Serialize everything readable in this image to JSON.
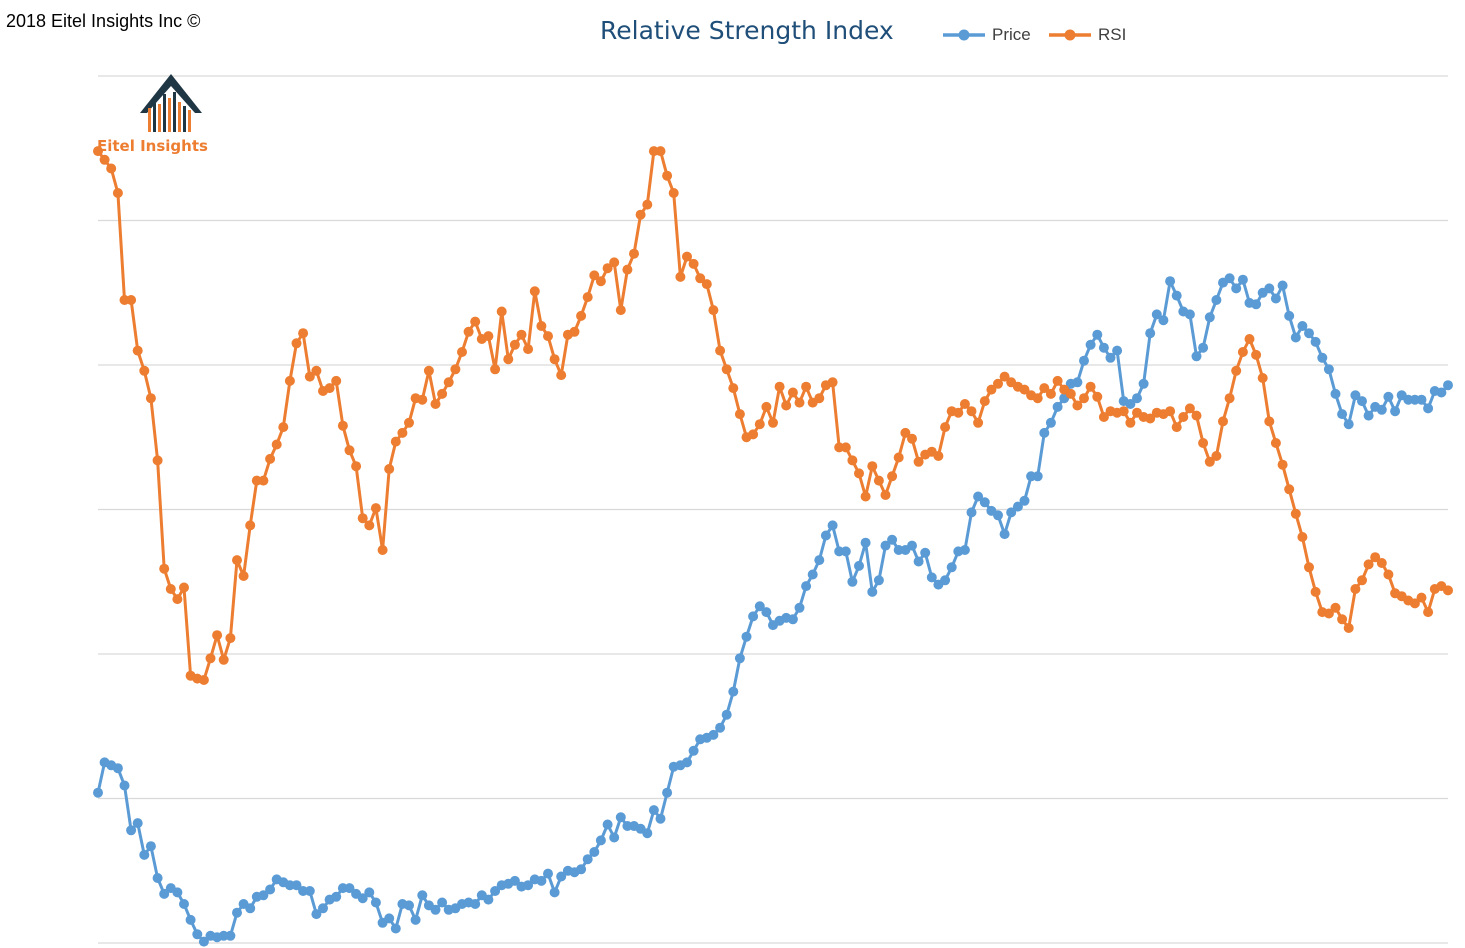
{
  "header": {
    "copyright": "2018 Eitel Insights Inc ©"
  },
  "logo": {
    "text": "Eitel Insights",
    "icon": "house-bar-chart-icon"
  },
  "colors": {
    "price": "#5b9bd5",
    "rsi": "#ed7d31",
    "grid": "#d9d9d9",
    "title": "#1f4e79",
    "logo_dark": "#1f3644"
  },
  "chart_data": {
    "type": "line",
    "title": "Relative Strength Index",
    "xlabel": "",
    "ylabel": "",
    "legend": "top",
    "grid": true,
    "ylim": [
      0,
      6
    ],
    "series": [
      {
        "name": "Price",
        "values": [
          1.04,
          1.25,
          1.23,
          1.21,
          1.09,
          0.78,
          0.83,
          0.61,
          0.67,
          0.45,
          0.34,
          0.38,
          0.35,
          0.27,
          0.16,
          0.06,
          0.01,
          0.05,
          0.04,
          0.05,
          0.05,
          0.21,
          0.27,
          0.24,
          0.32,
          0.33,
          0.37,
          0.44,
          0.42,
          0.4,
          0.4,
          0.36,
          0.36,
          0.2,
          0.24,
          0.3,
          0.32,
          0.38,
          0.38,
          0.34,
          0.31,
          0.35,
          0.28,
          0.14,
          0.17,
          0.1,
          0.27,
          0.26,
          0.16,
          0.33,
          0.26,
          0.23,
          0.28,
          0.23,
          0.24,
          0.27,
          0.28,
          0.27,
          0.33,
          0.3,
          0.36,
          0.4,
          0.41,
          0.43,
          0.39,
          0.4,
          0.44,
          0.43,
          0.48,
          0.35,
          0.46,
          0.5,
          0.49,
          0.51,
          0.58,
          0.63,
          0.71,
          0.82,
          0.73,
          0.87,
          0.81,
          0.81,
          0.79,
          0.76,
          0.92,
          0.86,
          1.04,
          1.22,
          1.23,
          1.25,
          1.33,
          1.41,
          1.42,
          1.44,
          1.49,
          1.58,
          1.74,
          1.97,
          2.12,
          2.26,
          2.33,
          2.29,
          2.2,
          2.23,
          2.25,
          2.24,
          2.32,
          2.47,
          2.55,
          2.65,
          2.82,
          2.89,
          2.71,
          2.71,
          2.5,
          2.61,
          2.77,
          2.43,
          2.51,
          2.75,
          2.79,
          2.72,
          2.72,
          2.75,
          2.64,
          2.7,
          2.53,
          2.48,
          2.51,
          2.6,
          2.71,
          2.72,
          2.98,
          3.09,
          3.05,
          2.99,
          2.96,
          2.83,
          2.98,
          3.02,
          3.06,
          3.23,
          3.23,
          3.53,
          3.6,
          3.71,
          3.77,
          3.87,
          3.88,
          4.03,
          4.14,
          4.21,
          4.12,
          4.05,
          4.1,
          3.75,
          3.73,
          3.77,
          3.87,
          4.22,
          4.35,
          4.31,
          4.58,
          4.48,
          4.37,
          4.35,
          4.06,
          4.12,
          4.33,
          4.45,
          4.57,
          4.6,
          4.53,
          4.59,
          4.43,
          4.42,
          4.5,
          4.53,
          4.46,
          4.55,
          4.34,
          4.19,
          4.27,
          4.22,
          4.16,
          4.05,
          3.97,
          3.8,
          3.66,
          3.59,
          3.79,
          3.75,
          3.65,
          3.71,
          3.69,
          3.78,
          3.68,
          3.79,
          3.76,
          3.76,
          3.76,
          3.7,
          3.82,
          3.81,
          3.86
        ]
      },
      {
        "name": "RSI",
        "values": [
          5.48,
          5.42,
          5.36,
          5.19,
          4.45,
          4.45,
          4.1,
          3.96,
          3.77,
          3.34,
          2.59,
          2.45,
          2.38,
          2.46,
          1.85,
          1.83,
          1.82,
          1.97,
          2.13,
          1.96,
          2.11,
          2.65,
          2.54,
          2.89,
          3.2,
          3.2,
          3.35,
          3.45,
          3.57,
          3.89,
          4.15,
          4.22,
          3.92,
          3.96,
          3.82,
          3.84,
          3.89,
          3.58,
          3.41,
          3.3,
          2.94,
          2.89,
          3.01,
          2.72,
          3.28,
          3.47,
          3.53,
          3.6,
          3.77,
          3.76,
          3.96,
          3.73,
          3.8,
          3.88,
          3.97,
          4.09,
          4.23,
          4.3,
          4.18,
          4.2,
          3.97,
          4.37,
          4.04,
          4.14,
          4.21,
          4.11,
          4.51,
          4.27,
          4.2,
          4.04,
          3.93,
          4.21,
          4.23,
          4.34,
          4.47,
          4.62,
          4.58,
          4.67,
          4.71,
          4.38,
          4.66,
          4.77,
          5.04,
          5.11,
          5.48,
          5.48,
          5.31,
          5.19,
          4.61,
          4.75,
          4.7,
          4.6,
          4.56,
          4.38,
          4.1,
          3.97,
          3.84,
          3.66,
          3.5,
          3.52,
          3.59,
          3.71,
          3.6,
          3.85,
          3.72,
          3.81,
          3.74,
          3.85,
          3.74,
          3.77,
          3.86,
          3.88,
          3.43,
          3.43,
          3.34,
          3.25,
          3.09,
          3.3,
          3.2,
          3.1,
          3.23,
          3.36,
          3.53,
          3.49,
          3.33,
          3.38,
          3.4,
          3.37,
          3.57,
          3.68,
          3.67,
          3.73,
          3.68,
          3.6,
          3.75,
          3.83,
          3.87,
          3.92,
          3.88,
          3.85,
          3.83,
          3.79,
          3.77,
          3.84,
          3.8,
          3.89,
          3.83,
          3.8,
          3.72,
          3.77,
          3.85,
          3.78,
          3.64,
          3.68,
          3.67,
          3.68,
          3.6,
          3.67,
          3.64,
          3.63,
          3.67,
          3.66,
          3.68,
          3.57,
          3.64,
          3.7,
          3.65,
          3.46,
          3.33,
          3.37,
          3.61,
          3.77,
          3.96,
          4.09,
          4.18,
          4.07,
          3.91,
          3.61,
          3.46,
          3.31,
          3.14,
          2.97,
          2.81,
          2.6,
          2.43,
          2.29,
          2.28,
          2.32,
          2.24,
          2.18,
          2.45,
          2.51,
          2.62,
          2.67,
          2.63,
          2.55,
          2.42,
          2.4,
          2.37,
          2.35,
          2.39,
          2.29,
          2.45,
          2.47,
          2.44
        ]
      }
    ]
  }
}
